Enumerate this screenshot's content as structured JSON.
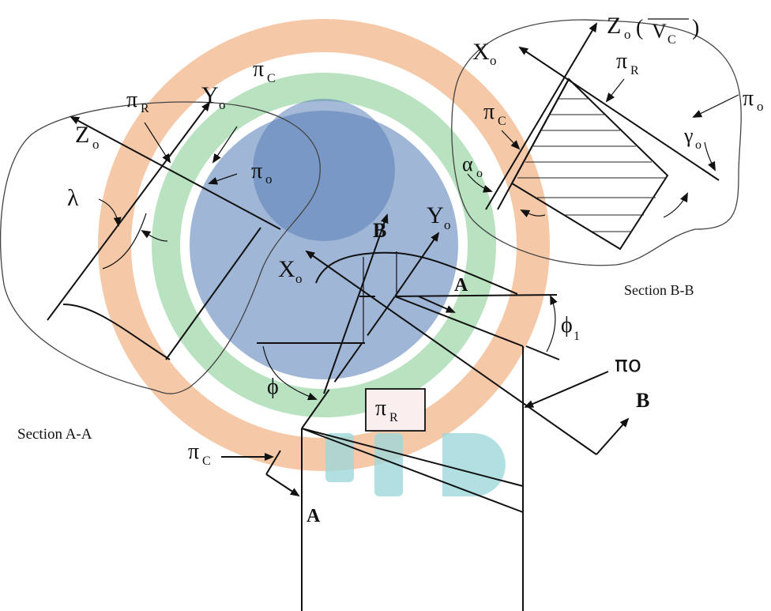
{
  "colors": {
    "ring_outer": "#f5c9a8",
    "ring_middle": "#b9e2c0",
    "ring_inner_fill": "#9fb6d6",
    "ring_inner_center": "#5b7fb8",
    "watermark_letters": "#9fd9dc",
    "stroke": "#111111"
  },
  "icons": {
    "watermark": "gemstone-logo-watermark"
  },
  "labels": {
    "section_aa": "Section A-A",
    "section_bb": "Section B-B",
    "pi": "π",
    "sub_r": "R",
    "sub_c": "C",
    "sub_o": "o",
    "sub_1": "1",
    "x": "X",
    "y": "Y",
    "z": "Z",
    "lambda": "λ",
    "alpha": "α",
    "gamma": "γ",
    "phi": "ϕ",
    "point_a": "A",
    "point_b": "B",
    "pi_o_big": "πo",
    "vc_open": "(",
    "vc_close": ")",
    "v_c": "V",
    "v_c_sub": "C"
  }
}
